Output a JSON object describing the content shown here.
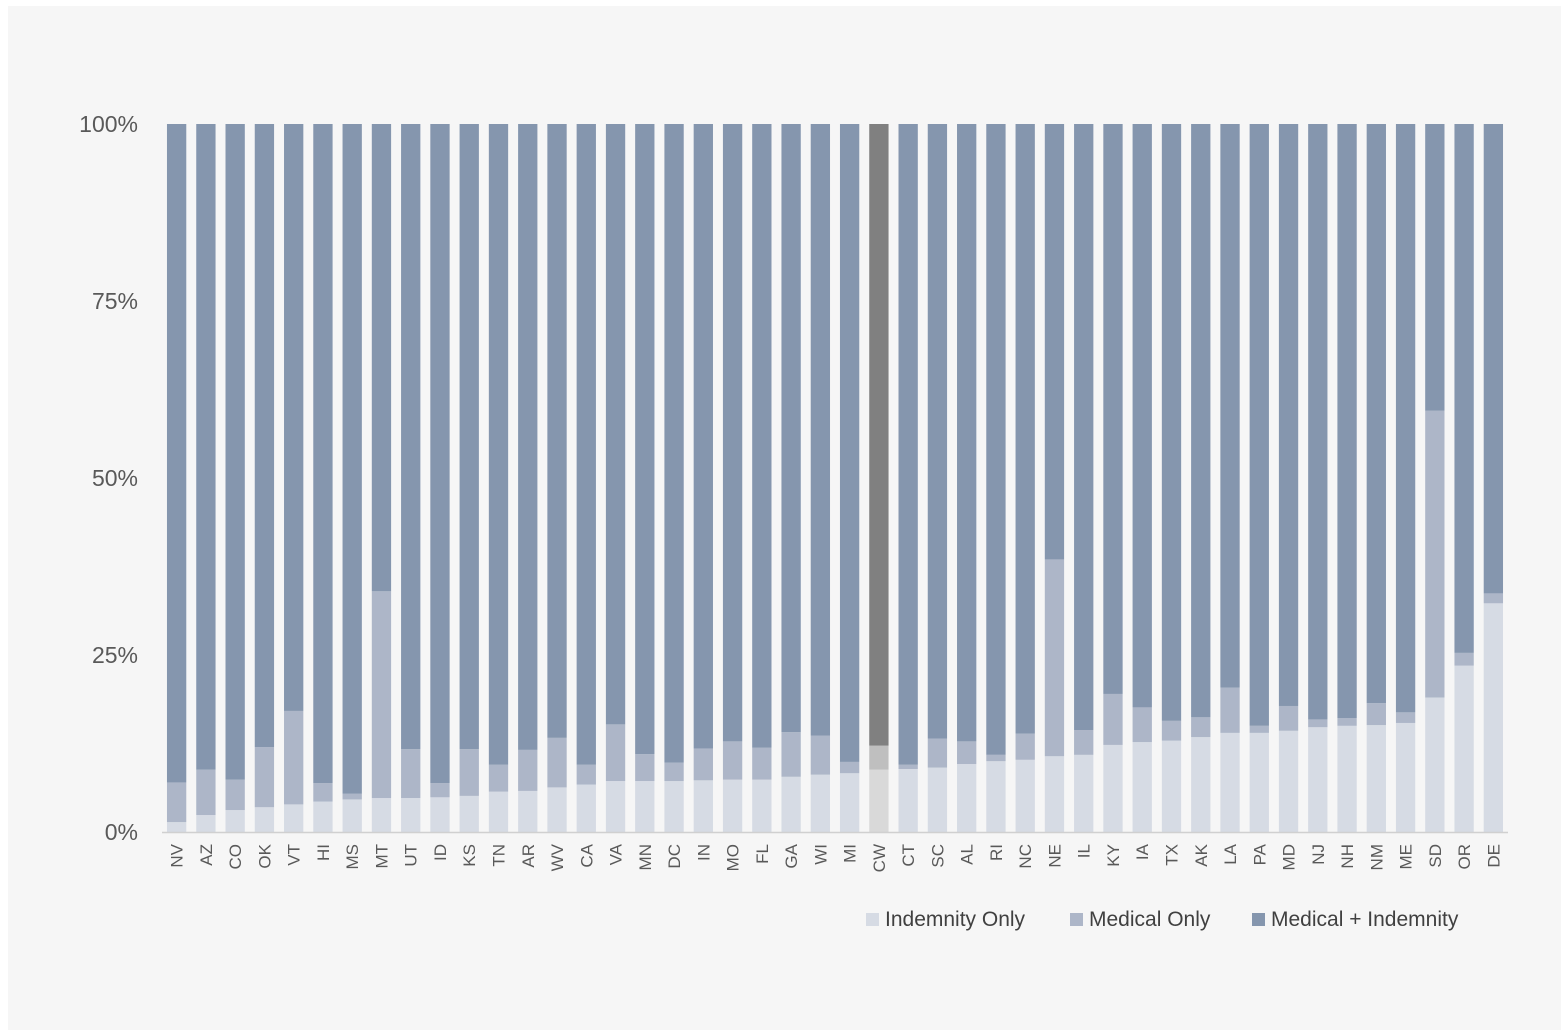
{
  "chart_data": {
    "type": "bar",
    "stacked": true,
    "percent_stacked": true,
    "categories": [
      "NV",
      "AZ",
      "CO",
      "OK",
      "VT",
      "HI",
      "MS",
      "MT",
      "UT",
      "ID",
      "KS",
      "TN",
      "AR",
      "WV",
      "CA",
      "VA",
      "MN",
      "DC",
      "IN",
      "MO",
      "FL",
      "GA",
      "WI",
      "MI",
      "CW",
      "CT",
      "SC",
      "AL",
      "RI",
      "NC",
      "NE",
      "IL",
      "KY",
      "IA",
      "TX",
      "AK",
      "LA",
      "PA",
      "MD",
      "NJ",
      "NH",
      "NM",
      "ME",
      "SD",
      "OR",
      "DE"
    ],
    "highlight_category": "CW",
    "series": [
      {
        "name": "Indemnity Only",
        "color": "#d6dbe4",
        "highlight_color": "#d9d9d9",
        "values": [
          1.4,
          2.4,
          3.1,
          3.5,
          3.9,
          4.3,
          4.6,
          4.8,
          4.8,
          4.9,
          5.1,
          5.7,
          5.8,
          6.3,
          6.7,
          7.2,
          7.2,
          7.2,
          7.3,
          7.4,
          7.4,
          7.8,
          8.1,
          8.3,
          8.8,
          8.9,
          9.1,
          9.6,
          10.0,
          10.2,
          10.7,
          10.9,
          12.3,
          12.7,
          12.9,
          13.4,
          14.0,
          14.0,
          14.3,
          14.8,
          15.0,
          15.1,
          15.4,
          19.0,
          23.5,
          32.3
        ]
      },
      {
        "name": "Medical Only",
        "color": "#adb6c8",
        "highlight_color": "#bfbfbf",
        "values": [
          5.6,
          6.4,
          4.3,
          8.5,
          13.2,
          2.6,
          0.8,
          29.2,
          6.9,
          2.0,
          6.6,
          3.8,
          5.8,
          7.0,
          2.8,
          8.0,
          3.8,
          2.6,
          4.5,
          5.4,
          4.5,
          6.3,
          5.5,
          1.6,
          3.4,
          0.6,
          4.1,
          3.2,
          0.9,
          3.7,
          27.8,
          3.5,
          7.2,
          4.9,
          2.8,
          2.8,
          6.4,
          1.0,
          3.5,
          1.1,
          1.1,
          3.1,
          1.5,
          40.5,
          1.8,
          1.4
        ]
      },
      {
        "name": "Medical + Indemnity",
        "color": "#8596ae",
        "highlight_color": "#808080",
        "values": [
          93.0,
          91.2,
          92.6,
          88.0,
          82.9,
          93.1,
          94.6,
          66.0,
          88.3,
          93.1,
          88.3,
          90.5,
          88.4,
          86.7,
          90.5,
          84.8,
          89.0,
          90.2,
          88.2,
          87.2,
          88.1,
          85.9,
          86.4,
          90.1,
          87.8,
          90.5,
          86.8,
          87.2,
          89.1,
          86.1,
          61.5,
          85.6,
          80.5,
          82.4,
          84.3,
          83.8,
          79.6,
          85.0,
          82.2,
          84.1,
          83.9,
          81.8,
          83.1,
          40.5,
          74.7,
          66.3
        ]
      }
    ],
    "y_ticks": [
      "0%",
      "25%",
      "50%",
      "75%",
      "100%"
    ],
    "ylim": [
      0,
      100
    ],
    "legend_position": "bottom-right"
  }
}
